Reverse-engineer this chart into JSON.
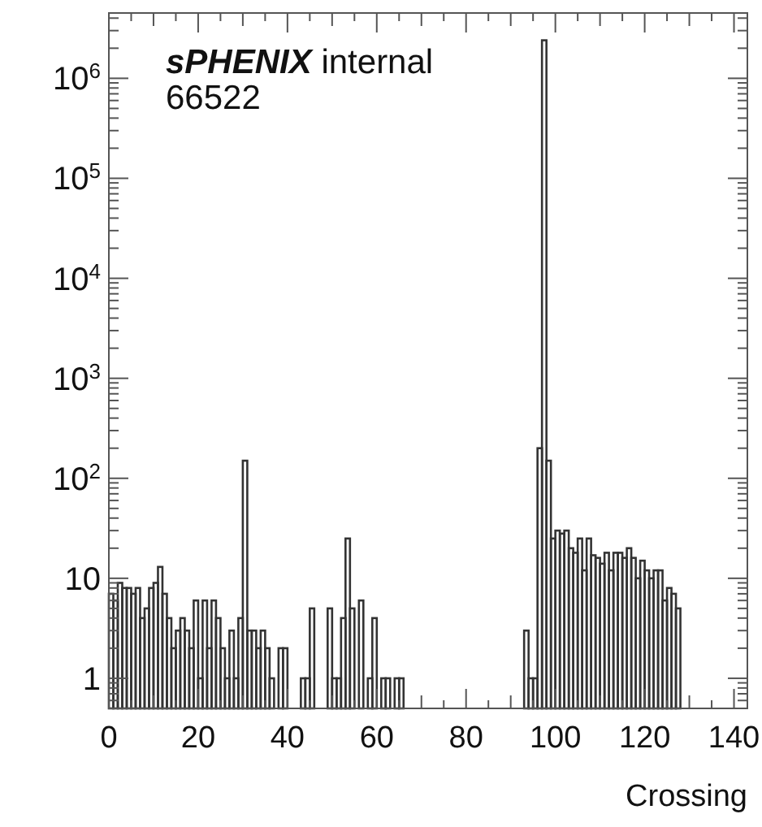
{
  "chart_data": {
    "type": "histogram",
    "xlabel": "Crossing",
    "annotations": [
      "sPHENIX internal",
      "66522"
    ],
    "color": "#333333",
    "log": "y",
    "bins": [
      0,
      1,
      2,
      3,
      4,
      5,
      6,
      7,
      8,
      9,
      10,
      11,
      12,
      13,
      14,
      15,
      16,
      17,
      18,
      19,
      20,
      21,
      22,
      23,
      24,
      25,
      26,
      27,
      28,
      29,
      30,
      31,
      32,
      33,
      34,
      35,
      36,
      37,
      38,
      39,
      40,
      41,
      42,
      43,
      44,
      45,
      46,
      47,
      48,
      49,
      50,
      51,
      52,
      53,
      54,
      55,
      56,
      57,
      58,
      59,
      60,
      61,
      62,
      63,
      64,
      65,
      66,
      67,
      68,
      69,
      70,
      71,
      72,
      73,
      74,
      75,
      76,
      77,
      78,
      79,
      80,
      81,
      82,
      83,
      84,
      85,
      86,
      87,
      88,
      89,
      90,
      91,
      92,
      93,
      94,
      95,
      96,
      97,
      98,
      99,
      100,
      101,
      102,
      103,
      104,
      105,
      106,
      107,
      108,
      109,
      110,
      111,
      112,
      113,
      114,
      115,
      116,
      117,
      118,
      119,
      120,
      121,
      122,
      123,
      124,
      125,
      126,
      127,
      128
    ],
    "values": [
      7,
      6,
      9,
      8,
      8,
      7,
      8,
      4,
      5,
      8,
      9,
      13,
      7,
      4,
      2,
      3,
      4,
      3,
      2,
      6,
      1,
      6,
      2,
      6,
      4,
      2,
      1,
      3,
      1,
      4,
      150,
      3,
      3,
      2,
      3,
      2,
      1,
      null,
      2,
      2,
      null,
      null,
      null,
      1,
      1,
      5,
      null,
      null,
      null,
      5,
      1,
      1,
      4,
      25,
      5,
      null,
      6,
      null,
      1,
      4,
      null,
      1,
      1,
      null,
      1,
      1,
      null,
      null,
      null,
      null,
      null,
      null,
      null,
      null,
      null,
      null,
      null,
      null,
      null,
      null,
      null,
      null,
      null,
      null,
      null,
      null,
      null,
      null,
      null,
      null,
      null,
      null,
      null,
      3,
      1,
      1,
      200,
      2400000,
      150,
      25,
      30,
      28,
      30,
      20,
      18,
      25,
      12,
      25,
      17,
      16,
      14,
      18,
      12,
      18,
      18,
      16,
      20,
      16,
      10,
      15,
      12,
      10,
      12,
      12,
      6,
      8,
      7,
      5
    ],
    "xlim": [
      0,
      143
    ],
    "xticks": [
      0,
      {
        "value": 5,
        "label": null
      },
      {
        "value": 10,
        "label": null
      },
      {
        "value": 15,
        "label": null
      },
      20,
      {
        "value": 25,
        "label": null
      },
      {
        "value": 30,
        "label": null
      },
      {
        "value": 35,
        "label": null
      },
      40,
      {
        "value": 45,
        "label": null
      },
      {
        "value": 50,
        "label": null
      },
      {
        "value": 55,
        "label": null
      },
      60,
      {
        "value": 65,
        "label": null
      },
      {
        "value": 70,
        "label": null
      },
      {
        "value": 75,
        "label": null
      },
      80,
      {
        "value": 85,
        "label": null
      },
      {
        "value": 90,
        "label": null
      },
      {
        "value": 95,
        "label": null
      },
      100,
      {
        "value": 105,
        "label": null
      },
      {
        "value": 110,
        "label": null
      },
      {
        "value": 115,
        "label": null
      },
      120,
      {
        "value": 125,
        "label": null
      },
      {
        "value": 130,
        "label": null
      },
      {
        "value": 135,
        "label": null
      },
      140
    ],
    "ylim": [
      0.5,
      4500000
    ],
    "yticks": [
      {
        "value": 0.6,
        "label": null
      },
      {
        "value": 0.7,
        "label": null
      },
      {
        "value": 0.8,
        "label": null
      },
      {
        "value": 0.9,
        "label": null
      },
      1,
      {
        "value": 2,
        "label": null
      },
      {
        "value": 3,
        "label": null
      },
      {
        "value": 4,
        "label": null
      },
      {
        "value": 5,
        "label": null
      },
      {
        "value": 6,
        "label": null
      },
      {
        "value": 7,
        "label": null
      },
      {
        "value": 8,
        "label": null
      },
      {
        "value": 9,
        "label": null
      },
      10,
      {
        "value": 20,
        "label": null
      },
      {
        "value": 30,
        "label": null
      },
      {
        "value": 40,
        "label": null
      },
      {
        "value": 50,
        "label": null
      },
      {
        "value": 60,
        "label": null
      },
      {
        "value": 70,
        "label": null
      },
      {
        "value": 80,
        "label": null
      },
      {
        "value": 90,
        "label": null
      },
      {
        "value": 100,
        "label": "10$^{2}$"
      },
      {
        "value": 200,
        "label": null
      },
      {
        "value": 300,
        "label": null
      },
      {
        "value": 400,
        "label": null
      },
      {
        "value": 500,
        "label": null
      },
      {
        "value": 600,
        "label": null
      },
      {
        "value": 700,
        "label": null
      },
      {
        "value": 800,
        "label": null
      },
      {
        "value": 900,
        "label": null
      },
      {
        "value": 1000,
        "label": "10$^{3}$"
      },
      {
        "value": 2000,
        "label": null
      },
      {
        "value": 3000,
        "label": null
      },
      {
        "value": 4000,
        "label": null
      },
      {
        "value": 5000,
        "label": null
      },
      {
        "value": 6000,
        "label": null
      },
      {
        "value": 7000,
        "label": null
      },
      {
        "value": 8000,
        "label": null
      },
      {
        "value": 9000,
        "label": null
      },
      {
        "value": 10000,
        "label": "10$^{4}$"
      },
      {
        "value": 20000,
        "label": null
      },
      {
        "value": 30000,
        "label": null
      },
      {
        "value": 40000,
        "label": null
      },
      {
        "value": 50000,
        "label": null
      },
      {
        "value": 60000,
        "label": null
      },
      {
        "value": 70000,
        "label": null
      },
      {
        "value": 80000,
        "label": null
      },
      {
        "value": 90000,
        "label": null
      },
      {
        "value": 100000,
        "label": "10$^{5}$"
      },
      {
        "value": 200000,
        "label": null
      },
      {
        "value": 300000,
        "label": null
      },
      {
        "value": 400000,
        "label": null
      },
      {
        "value": 500000,
        "label": null
      },
      {
        "value": 600000,
        "label": null
      },
      {
        "value": 700000,
        "label": null
      },
      {
        "value": 800000,
        "label": null
      },
      {
        "value": 900000,
        "label": null
      },
      {
        "value": 1000000,
        "label": "10$^{6}$"
      },
      {
        "value": 2000000,
        "label": null
      },
      {
        "value": 3000000,
        "label": null
      },
      {
        "value": 4000000,
        "label": null
      }
    ],
    "grid": false
  }
}
